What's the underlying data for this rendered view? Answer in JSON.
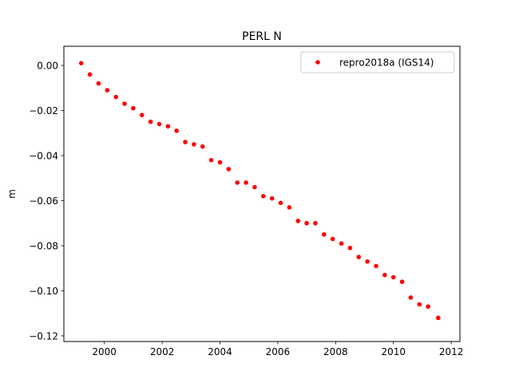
{
  "chart_data": {
    "type": "scatter",
    "title": "PERL N",
    "xlabel": "",
    "ylabel": "m",
    "xlim": [
      1998.6,
      2012.3
    ],
    "ylim": [
      -0.1225,
      0.0085
    ],
    "xticks": [
      2000,
      2002,
      2004,
      2006,
      2008,
      2010,
      2012
    ],
    "xtick_labels": [
      "2000",
      "2002",
      "2004",
      "2006",
      "2008",
      "2010",
      "2012"
    ],
    "yticks": [
      0.0,
      -0.02,
      -0.04,
      -0.06,
      -0.08,
      -0.1,
      -0.12
    ],
    "ytick_labels": [
      "0.00",
      "−0.02",
      "−0.04",
      "−0.06",
      "−0.08",
      "−0.10",
      "−0.12"
    ],
    "grid": false,
    "legend_position": "top-right",
    "series": [
      {
        "name": "repro2018a (IGS14)",
        "color": "#ff0000",
        "marker": "circle",
        "x": [
          1999.2,
          1999.5,
          1999.8,
          2000.1,
          2000.4,
          2000.7,
          2001.0,
          2001.3,
          2001.6,
          2001.9,
          2002.2,
          2002.5,
          2002.8,
          2003.1,
          2003.4,
          2003.7,
          2004.0,
          2004.3,
          2004.6,
          2004.9,
          2005.2,
          2005.5,
          2005.8,
          2006.1,
          2006.4,
          2006.7,
          2007.0,
          2007.3,
          2007.6,
          2007.9,
          2008.2,
          2008.5,
          2008.8,
          2009.1,
          2009.4,
          2009.7,
          2010.0,
          2010.3,
          2010.6,
          2010.9,
          2011.2,
          2011.55
        ],
        "y": [
          0.001,
          -0.004,
          -0.008,
          -0.011,
          -0.014,
          -0.017,
          -0.019,
          -0.022,
          -0.025,
          -0.026,
          -0.027,
          -0.029,
          -0.034,
          -0.035,
          -0.036,
          -0.042,
          -0.043,
          -0.046,
          -0.052,
          -0.052,
          -0.054,
          -0.058,
          -0.059,
          -0.061,
          -0.063,
          -0.069,
          -0.07,
          -0.07,
          -0.075,
          -0.077,
          -0.079,
          -0.081,
          -0.085,
          -0.087,
          -0.089,
          -0.093,
          -0.094,
          -0.096,
          -0.103,
          -0.106,
          -0.107,
          -0.112
        ]
      }
    ]
  }
}
